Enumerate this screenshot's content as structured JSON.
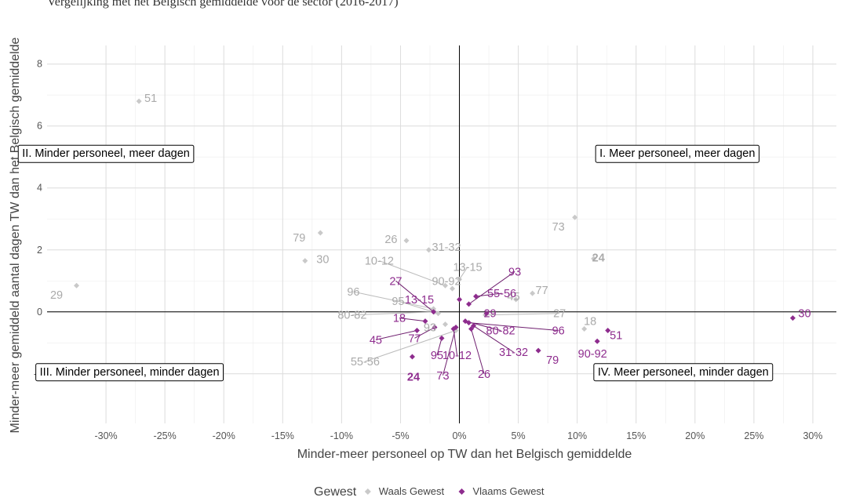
{
  "header": {
    "title": "Vergelijking met het Belgisch gemiddelde voor de sector (2016-2017)"
  },
  "chart_data": {
    "type": "scatter",
    "xlabel": "Minder-meer personeel op TW dan het Belgisch gemiddelde",
    "ylabel": "Minder-meer gemiddeld aantal dagen TW dan het Belgisch gemiddelde",
    "xlim": [
      -0.35,
      0.32
    ],
    "ylim": [
      -3.6,
      8.6
    ],
    "x_ticks": [
      -0.3,
      -0.25,
      -0.2,
      -0.15,
      -0.1,
      -0.05,
      0,
      0.05,
      0.1,
      0.15,
      0.2,
      0.25,
      0.3
    ],
    "x_tick_labels": [
      "-30%",
      "-25%",
      "-20%",
      "-15%",
      "-10%",
      "-5%",
      "0%",
      "5%",
      "10%",
      "15%",
      "20%",
      "25%",
      "30%"
    ],
    "y_ticks": [
      -2,
      0,
      2,
      4,
      6,
      8
    ],
    "y_tick_labels": [
      "-2",
      "0",
      "2",
      "4",
      "6",
      "8"
    ],
    "grid": true,
    "legend": {
      "title": "Gewest",
      "position": "bottom"
    },
    "quadrants": [
      {
        "text": "II. Minder personeel, meer dagen",
        "x": -0.3,
        "y": 5.0
      },
      {
        "text": "I. Meer personeel, meer dagen",
        "x": 0.185,
        "y": 5.0
      },
      {
        "text": "III. Minder personeel, minder dagen",
        "x": -0.28,
        "y": -2.05
      },
      {
        "text": "IV. Meer personeel, minder dagen",
        "x": 0.19,
        "y": -2.05
      }
    ],
    "series": [
      {
        "name": "Waals Gewest",
        "color": "#c9c9c9",
        "label_color": "#aaaaaa",
        "line_color": "#bbbbbb",
        "points": [
          {
            "label": "51",
            "x": -0.272,
            "y": 6.8,
            "lx": -0.262,
            "ly": 6.9
          },
          {
            "label": "79",
            "x": -0.118,
            "y": 2.55,
            "lx": -0.136,
            "ly": 2.4
          },
          {
            "label": "30",
            "x": -0.131,
            "y": 1.65,
            "lx": -0.116,
            "ly": 1.7
          },
          {
            "label": "29",
            "x": -0.325,
            "y": 0.85,
            "lx": -0.342,
            "ly": 0.55
          },
          {
            "label": "26",
            "x": -0.045,
            "y": 2.3,
            "lx": -0.058,
            "ly": 2.35
          },
          {
            "label": "31-32",
            "x": -0.026,
            "y": 2.0,
            "lx": -0.011,
            "ly": 2.1
          },
          {
            "label": "10-12",
            "x": -0.012,
            "y": 0.85,
            "lx": -0.068,
            "ly": 1.65,
            "line": true
          },
          {
            "label": "90-92",
            "x": -0.006,
            "y": 0.75,
            "lx": -0.011,
            "ly": 1.0
          },
          {
            "label": "13-15",
            "x": 0.0,
            "y": 1.05,
            "lx": 0.007,
            "ly": 1.45,
            "line": true
          },
          {
            "label": "96",
            "x": -0.022,
            "y": 0.1,
            "lx": -0.09,
            "ly": 0.65,
            "line": true
          },
          {
            "label": "95",
            "x": -0.018,
            "y": -0.05,
            "lx": -0.052,
            "ly": 0.35,
            "line": true
          },
          {
            "label": "80-82",
            "x": -0.021,
            "y": 0.0,
            "lx": -0.091,
            "ly": -0.1,
            "line": true
          },
          {
            "label": "93",
            "x": -0.012,
            "y": -0.4,
            "lx": -0.025,
            "ly": -0.5
          },
          {
            "label": "45",
            "x": 0.048,
            "y": 0.4,
            "lx": 0.046,
            "ly": 0.5
          },
          {
            "label": "77",
            "x": 0.062,
            "y": 0.6,
            "lx": 0.07,
            "ly": 0.7
          },
          {
            "label": "27",
            "x": 0.022,
            "y": -0.1,
            "lx": 0.085,
            "ly": -0.05,
            "line": true
          },
          {
            "label": "73",
            "x": 0.098,
            "y": 3.05,
            "lx": 0.084,
            "ly": 2.75
          },
          {
            "label": "24",
            "x": 0.114,
            "y": 1.72,
            "lx": 0.118,
            "ly": 1.75,
            "bold": true
          },
          {
            "label": "18",
            "x": 0.106,
            "y": -0.55,
            "lx": 0.111,
            "ly": -0.3
          },
          {
            "label": "55-56",
            "x": -0.003,
            "y": -0.6,
            "lx": -0.08,
            "ly": -1.6,
            "line": true
          }
        ]
      },
      {
        "name": "Vlaams Gewest",
        "color": "#8e2c8e",
        "label_color": "#8e2c8e",
        "line_color": "#6f1f6f",
        "points": [
          {
            "label": "93",
            "x": 0.008,
            "y": 0.25,
            "lx": 0.047,
            "ly": 1.3,
            "line": true
          },
          {
            "label": "27",
            "x": -0.022,
            "y": 0.0,
            "lx": -0.054,
            "ly": 1.0,
            "line": true
          },
          {
            "label": "55-56",
            "x": 0.014,
            "y": 0.5,
            "lx": 0.036,
            "ly": 0.6,
            "line": true
          },
          {
            "label": "13-15",
            "x": 0.0,
            "y": 0.4,
            "lx": -0.034,
            "ly": 0.4
          },
          {
            "label": "29",
            "x": 0.023,
            "y": -0.05,
            "lx": 0.026,
            "ly": -0.05
          },
          {
            "label": "18",
            "x": -0.029,
            "y": -0.3,
            "lx": -0.051,
            "ly": -0.2,
            "line": true
          },
          {
            "label": "80-82",
            "x": 0.005,
            "y": -0.3,
            "lx": 0.035,
            "ly": -0.6,
            "line": true
          },
          {
            "label": "96",
            "x": 0.008,
            "y": -0.35,
            "lx": 0.084,
            "ly": -0.6,
            "line": true
          },
          {
            "label": "45",
            "x": -0.036,
            "y": -0.6,
            "lx": -0.071,
            "ly": -0.9,
            "line": true
          },
          {
            "label": "77",
            "x": -0.021,
            "y": -0.5,
            "lx": -0.038,
            "ly": -0.85,
            "line": true
          },
          {
            "label": "31-32",
            "x": 0.012,
            "y": -0.45,
            "lx": 0.046,
            "ly": -1.3,
            "line": true
          },
          {
            "label": "10-12",
            "x": -0.005,
            "y": -0.55,
            "lx": -0.002,
            "ly": -1.4,
            "line": true
          },
          {
            "label": "95",
            "x": -0.015,
            "y": -0.85,
            "lx": -0.019,
            "ly": -1.4,
            "line": true
          },
          {
            "label": "73",
            "x": -0.003,
            "y": -0.5,
            "lx": -0.014,
            "ly": -2.05,
            "line": true
          },
          {
            "label": "26",
            "x": 0.01,
            "y": -0.55,
            "lx": 0.021,
            "ly": -2.0,
            "line": true
          },
          {
            "label": "79",
            "x": 0.067,
            "y": -1.25,
            "lx": 0.079,
            "ly": -1.55
          },
          {
            "label": "24",
            "x": -0.04,
            "y": -1.45,
            "lx": -0.039,
            "ly": -2.1,
            "bold": true
          },
          {
            "label": "51",
            "x": 0.126,
            "y": -0.6,
            "lx": 0.133,
            "ly": -0.75
          },
          {
            "label": "90-92",
            "x": 0.117,
            "y": -0.95,
            "lx": 0.113,
            "ly": -1.35
          },
          {
            "label": "30",
            "x": 0.283,
            "y": -0.2,
            "lx": 0.293,
            "ly": -0.05
          }
        ]
      }
    ]
  }
}
